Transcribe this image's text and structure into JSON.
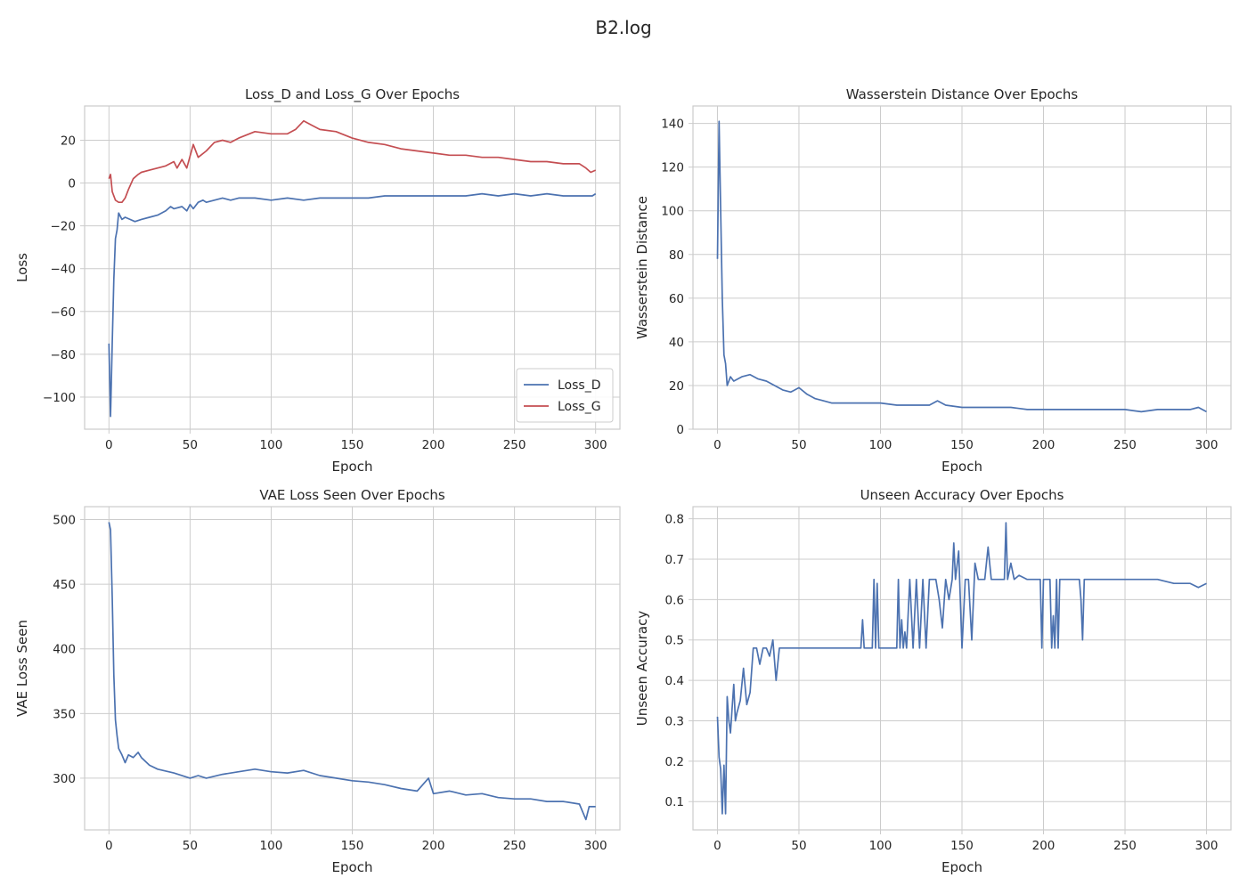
{
  "figure": {
    "title": "B2.log"
  },
  "chart_data": [
    {
      "type": "line",
      "title": "Loss_D and Loss_G Over Epochs",
      "xlabel": "Epoch",
      "ylabel": "Loss",
      "xlim": [
        -15,
        315
      ],
      "ylim": [
        -115,
        36
      ],
      "xticks": [
        0,
        50,
        100,
        150,
        200,
        250,
        300
      ],
      "yticks": [
        -100,
        -80,
        -60,
        -40,
        -20,
        0,
        20
      ],
      "grid": true,
      "legend": "lower-right",
      "series": [
        {
          "name": "Loss_D",
          "color": "#4c72b0",
          "x": [
            0,
            1,
            2,
            3,
            4,
            5,
            6,
            8,
            10,
            13,
            16,
            20,
            25,
            30,
            35,
            38,
            40,
            45,
            48,
            50,
            52,
            55,
            58,
            60,
            65,
            70,
            75,
            80,
            90,
            100,
            110,
            120,
            130,
            140,
            150,
            160,
            170,
            180,
            190,
            200,
            210,
            220,
            230,
            240,
            250,
            260,
            270,
            280,
            290,
            298,
            300
          ],
          "y": [
            -75,
            -109,
            -75,
            -45,
            -26,
            -22,
            -14,
            -17,
            -16,
            -17,
            -18,
            -17,
            -16,
            -15,
            -13,
            -11,
            -12,
            -11,
            -13,
            -10,
            -12,
            -9,
            -8,
            -9,
            -8,
            -7,
            -8,
            -7,
            -7,
            -8,
            -7,
            -8,
            -7,
            -7,
            -7,
            -7,
            -6,
            -6,
            -6,
            -6,
            -6,
            -6,
            -5,
            -6,
            -5,
            -6,
            -5,
            -6,
            -6,
            -6,
            -5
          ]
        },
        {
          "name": "Loss_G",
          "color": "#c44e52",
          "x": [
            0,
            1,
            2,
            4,
            6,
            8,
            10,
            12,
            15,
            18,
            20,
            25,
            30,
            35,
            40,
            42,
            45,
            48,
            52,
            55,
            60,
            65,
            70,
            75,
            80,
            90,
            100,
            110,
            115,
            120,
            125,
            130,
            140,
            150,
            160,
            170,
            180,
            190,
            200,
            210,
            220,
            230,
            240,
            250,
            260,
            270,
            280,
            290,
            294,
            297,
            300
          ],
          "y": [
            2,
            4,
            -4,
            -8,
            -9,
            -9,
            -7,
            -3,
            2,
            4,
            5,
            6,
            7,
            8,
            10,
            7,
            11,
            7,
            18,
            12,
            15,
            19,
            20,
            19,
            21,
            24,
            23,
            23,
            25,
            29,
            27,
            25,
            24,
            21,
            19,
            18,
            16,
            15,
            14,
            13,
            13,
            12,
            12,
            11,
            10,
            10,
            9,
            9,
            7,
            5,
            6
          ]
        }
      ]
    },
    {
      "type": "line",
      "title": "Wasserstein Distance Over Epochs",
      "xlabel": "Epoch",
      "ylabel": "Wasserstein Distance",
      "xlim": [
        -15,
        315
      ],
      "ylim": [
        0,
        148
      ],
      "xticks": [
        0,
        50,
        100,
        150,
        200,
        250,
        300
      ],
      "yticks": [
        0,
        20,
        40,
        60,
        80,
        100,
        120,
        140
      ],
      "grid": true,
      "series": [
        {
          "color": "#4c72b0",
          "x": [
            0,
            1,
            2,
            3,
            4,
            5,
            6,
            8,
            10,
            15,
            20,
            25,
            30,
            35,
            40,
            45,
            50,
            55,
            60,
            65,
            70,
            80,
            90,
            100,
            110,
            120,
            130,
            135,
            140,
            150,
            160,
            170,
            180,
            190,
            200,
            210,
            220,
            230,
            240,
            250,
            260,
            270,
            280,
            290,
            295,
            300
          ],
          "y": [
            78,
            141,
            100,
            60,
            34,
            30,
            20,
            24,
            22,
            24,
            25,
            23,
            22,
            20,
            18,
            17,
            19,
            16,
            14,
            13,
            12,
            12,
            12,
            12,
            11,
            11,
            11,
            13,
            11,
            10,
            10,
            10,
            10,
            9,
            9,
            9,
            9,
            9,
            9,
            9,
            8,
            9,
            9,
            9,
            10,
            8
          ]
        }
      ]
    },
    {
      "type": "line",
      "title": "VAE Loss Seen Over Epochs",
      "xlabel": "Epoch",
      "ylabel": "VAE Loss Seen",
      "xlim": [
        -15,
        315
      ],
      "ylim": [
        260,
        510
      ],
      "xticks": [
        0,
        50,
        100,
        150,
        200,
        250,
        300
      ],
      "yticks": [
        300,
        350,
        400,
        450,
        500
      ],
      "grid": true,
      "series": [
        {
          "color": "#4c72b0",
          "x": [
            0,
            1,
            2,
            3,
            4,
            5,
            6,
            8,
            10,
            12,
            15,
            18,
            20,
            25,
            30,
            40,
            50,
            55,
            60,
            70,
            80,
            90,
            100,
            110,
            120,
            130,
            140,
            150,
            160,
            170,
            180,
            190,
            197,
            200,
            210,
            220,
            230,
            240,
            250,
            260,
            270,
            280,
            290,
            294,
            296,
            300
          ],
          "y": [
            498,
            492,
            440,
            380,
            345,
            333,
            323,
            318,
            312,
            318,
            316,
            320,
            316,
            310,
            307,
            304,
            300,
            302,
            300,
            303,
            305,
            307,
            305,
            304,
            306,
            302,
            300,
            298,
            297,
            295,
            292,
            290,
            300,
            288,
            290,
            287,
            288,
            285,
            284,
            284,
            282,
            282,
            280,
            268,
            278,
            278
          ]
        }
      ]
    },
    {
      "type": "line",
      "title": "Unseen Accuracy Over Epochs",
      "xlabel": "Epoch",
      "ylabel": "Unseen Accuracy",
      "xlim": [
        -15,
        315
      ],
      "ylim": [
        0.03,
        0.83
      ],
      "xticks": [
        0,
        50,
        100,
        150,
        200,
        250,
        300
      ],
      "yticks": [
        0.1,
        0.2,
        0.3,
        0.4,
        0.5,
        0.6,
        0.7,
        0.8
      ],
      "grid": true,
      "series": [
        {
          "color": "#4c72b0",
          "x": [
            0,
            1,
            2,
            3,
            4,
            5,
            6,
            7,
            8,
            9,
            10,
            11,
            12,
            14,
            16,
            18,
            20,
            22,
            24,
            26,
            28,
            30,
            32,
            34,
            36,
            38,
            40,
            45,
            50,
            55,
            60,
            70,
            80,
            88,
            89,
            90,
            95,
            96,
            97,
            98,
            99,
            100,
            105,
            110,
            111,
            112,
            113,
            114,
            115,
            116,
            118,
            120,
            122,
            124,
            126,
            128,
            130,
            132,
            134,
            136,
            138,
            140,
            142,
            144,
            145,
            146,
            148,
            150,
            152,
            154,
            156,
            158,
            160,
            162,
            164,
            166,
            168,
            170,
            172,
            174,
            176,
            177,
            178,
            180,
            182,
            185,
            190,
            195,
            198,
            199,
            200,
            202,
            204,
            205,
            206,
            207,
            208,
            209,
            210,
            215,
            220,
            222,
            223,
            224,
            225,
            230,
            240,
            250,
            260,
            270,
            280,
            290,
            295,
            300
          ],
          "y": [
            0.31,
            0.21,
            0.18,
            0.07,
            0.19,
            0.07,
            0.36,
            0.3,
            0.27,
            0.33,
            0.39,
            0.3,
            0.32,
            0.35,
            0.43,
            0.34,
            0.37,
            0.48,
            0.48,
            0.44,
            0.48,
            0.48,
            0.46,
            0.5,
            0.4,
            0.48,
            0.48,
            0.48,
            0.48,
            0.48,
            0.48,
            0.48,
            0.48,
            0.48,
            0.55,
            0.48,
            0.48,
            0.65,
            0.48,
            0.64,
            0.48,
            0.48,
            0.48,
            0.48,
            0.65,
            0.48,
            0.55,
            0.48,
            0.52,
            0.48,
            0.65,
            0.48,
            0.65,
            0.48,
            0.65,
            0.48,
            0.65,
            0.65,
            0.65,
            0.6,
            0.53,
            0.65,
            0.6,
            0.65,
            0.74,
            0.65,
            0.72,
            0.48,
            0.65,
            0.65,
            0.5,
            0.69,
            0.65,
            0.65,
            0.65,
            0.73,
            0.65,
            0.65,
            0.65,
            0.65,
            0.65,
            0.79,
            0.65,
            0.69,
            0.65,
            0.66,
            0.65,
            0.65,
            0.65,
            0.48,
            0.65,
            0.65,
            0.65,
            0.48,
            0.56,
            0.48,
            0.65,
            0.48,
            0.65,
            0.65,
            0.65,
            0.65,
            0.6,
            0.5,
            0.65,
            0.65,
            0.65,
            0.65,
            0.65,
            0.65,
            0.64,
            0.64,
            0.63,
            0.64
          ]
        }
      ]
    }
  ]
}
